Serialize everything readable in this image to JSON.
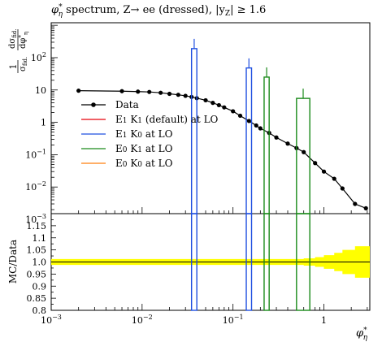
{
  "chart_data": {
    "type": "line",
    "title": "φ*η spectrum, Z→ ee (dressed), |yZ| ≥ 1.6",
    "title_parts": {
      "phi": "φ",
      "star": "*",
      "eta": "η",
      "rest": " spectrum, Z→ ee (dressed), |y",
      "z": "Z",
      "cond": "| ≥ 1.6"
    },
    "ylabel_top": {
      "one": "1",
      "sigma": "σ",
      "fid": "fid.",
      "dsigma": "dσ",
      "dphi": "dφ",
      "star": "*",
      "eta": "η"
    },
    "ylabel_bottom": "MC/Data",
    "xlabel": {
      "phi": "φ",
      "star": "*",
      "eta": "η"
    },
    "x_log": true,
    "y_log": true,
    "xlim": [
      0.001,
      3.2
    ],
    "ylim_top": [
      0.0015,
      1200
    ],
    "ylim_bottom": [
      0.8,
      1.2
    ],
    "x_ticks": [
      {
        "value": 0.001,
        "base": "10",
        "exp": "−3"
      },
      {
        "value": 0.01,
        "base": "10",
        "exp": "−2"
      },
      {
        "value": 0.1,
        "base": "10",
        "exp": "−1"
      },
      {
        "value": 1,
        "base": "1",
        "exp": ""
      }
    ],
    "y_ticks_top": [
      {
        "value": 0.001,
        "base": "10",
        "exp": "−3"
      },
      {
        "value": 0.01,
        "base": "10",
        "exp": "−2"
      },
      {
        "value": 0.1,
        "base": "10",
        "exp": "−1"
      },
      {
        "value": 1,
        "base": "1",
        "exp": ""
      },
      {
        "value": 10,
        "base": "10",
        "exp": ""
      },
      {
        "value": 100,
        "base": "10",
        "exp": "2"
      }
    ],
    "y_ticks_bottom": [
      "0.8",
      "0.85",
      "0.9",
      "0.95",
      "1.0",
      "1.05",
      "1.1",
      "1.15"
    ],
    "legend": {
      "placement": "center-left"
    },
    "series": [
      {
        "name": "Data",
        "color": "#000000",
        "style": "points",
        "x": [
          0.002,
          0.006,
          0.009,
          0.012,
          0.016,
          0.02,
          0.025,
          0.03,
          0.035,
          0.04,
          0.05,
          0.06,
          0.07,
          0.08,
          0.1,
          0.12,
          0.15,
          0.18,
          0.2,
          0.25,
          0.3,
          0.4,
          0.5,
          0.6,
          0.8,
          1.0,
          1.3,
          1.6,
          2.2,
          2.9
        ],
        "y": [
          9.5,
          9.2,
          8.9,
          8.7,
          8.2,
          7.6,
          7.1,
          6.6,
          6.1,
          5.6,
          4.8,
          4.0,
          3.4,
          2.9,
          2.2,
          1.6,
          1.1,
          0.8,
          0.65,
          0.47,
          0.34,
          0.22,
          0.16,
          0.12,
          0.055,
          0.03,
          0.018,
          0.009,
          0.003,
          0.0022
        ]
      },
      {
        "name": "E1 K1 (default) at LO",
        "color": "#e8000b",
        "style": "histogram",
        "bins": []
      },
      {
        "name": "E1 K0 at LO",
        "color": "#1f4fe0",
        "style": "histogram",
        "bins": [
          {
            "x0": 0.035,
            "x1": 0.04,
            "y": 190,
            "err_hi": 380,
            "ratio_lo": 0.8,
            "ratio_hi": 1.2
          },
          {
            "x0": 0.14,
            "x1": 0.16,
            "y": 48,
            "err_hi": 95,
            "ratio_lo": 0.8,
            "ratio_hi": 1.2
          }
        ]
      },
      {
        "name": "E0 K1 at LO",
        "color": "#1a8a1a",
        "style": "histogram",
        "bins": [
          {
            "x0": 0.22,
            "x1": 0.25,
            "y": 25,
            "err_hi": 50,
            "ratio_lo": 0.8,
            "ratio_hi": 1.2
          },
          {
            "x0": 0.5,
            "x1": 0.7,
            "y": 5.5,
            "err_hi": 11,
            "ratio_lo": 0.8,
            "ratio_hi": 1.2
          }
        ]
      },
      {
        "name": "E0 K0 at LO",
        "color": "#ff7f0e",
        "style": "histogram",
        "bins": []
      }
    ],
    "legend_labels": {
      "data": "Data",
      "e1k1_a": "E",
      "e1k1_b": "1",
      "e1k1_c": " K",
      "e1k1_d": "1",
      "e1k1_e": " (default) at LO",
      "e1k0_a": "E",
      "e1k0_b": "1",
      "e1k0_c": " K",
      "e1k0_d": "0",
      "e1k0_e": " at LO",
      "e0k1_a": "E",
      "e0k1_b": "0",
      "e0k1_c": " K",
      "e0k1_d": "1",
      "e0k1_e": " at LO",
      "e0k0_a": "E",
      "e0k0_b": "0",
      "e0k0_c": " K",
      "e0k0_d": "0",
      "e0k0_e": " at LO"
    },
    "ratio_band": {
      "color": "#ffff00",
      "x": [
        0.001,
        0.3,
        0.6,
        0.8,
        1.0,
        1.3,
        1.6,
        2.2,
        3.2
      ],
      "half_width": [
        0.012,
        0.012,
        0.015,
        0.02,
        0.028,
        0.038,
        0.05,
        0.065,
        0.08
      ]
    }
  }
}
